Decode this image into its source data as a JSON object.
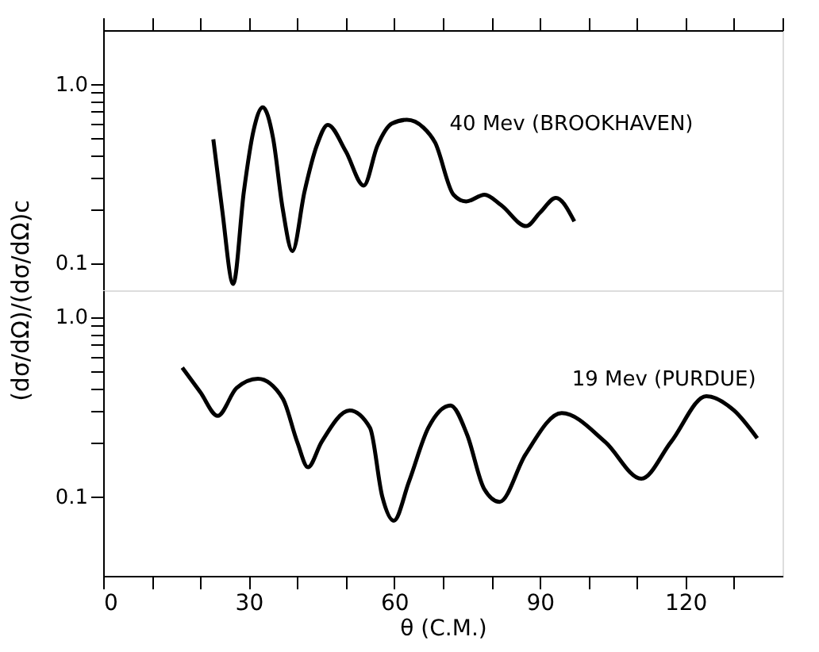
{
  "chart_data": [
    {
      "type": "line",
      "ylabel": "(dσ/dΩ)/(dσ/dΩ)c",
      "log": "y",
      "xlim": [
        0,
        140
      ],
      "ylim": [
        0.07,
        2.0
      ],
      "xticks": [
        {
          "value": 0,
          "label": null
        },
        {
          "value": 10,
          "label": null
        },
        {
          "value": 20,
          "label": null
        },
        {
          "value": 30,
          "label": null
        },
        {
          "value": 40,
          "label": null
        },
        {
          "value": 50,
          "label": null
        },
        {
          "value": 60,
          "label": null
        },
        {
          "value": 70,
          "label": null
        },
        {
          "value": 80,
          "label": null
        },
        {
          "value": 90,
          "label": null
        },
        {
          "value": 100,
          "label": null
        },
        {
          "value": 110,
          "label": null
        },
        {
          "value": 120,
          "label": null
        },
        {
          "value": 130,
          "label": null
        },
        {
          "value": 140,
          "label": null
        }
      ],
      "yticks": [
        {
          "value": 0.1,
          "label": "0.1"
        },
        {
          "value": 0.2,
          "label": null
        },
        {
          "value": 0.3,
          "label": null
        },
        {
          "value": 0.4,
          "label": null
        },
        {
          "value": 0.5,
          "label": null
        },
        {
          "value": 0.6,
          "label": null
        },
        {
          "value": 0.7,
          "label": null
        },
        {
          "value": 0.8,
          "label": null
        },
        {
          "value": 0.9,
          "label": null
        },
        {
          "value": 1.0,
          "label": "1.0"
        }
      ],
      "tick_labels": "y",
      "grid": false,
      "marker": "none",
      "line_style": "solid",
      "series": [
        {
          "color": "#000000",
          "x": [
            22.7,
            24.5,
            26.8,
            29,
            31,
            32.9,
            35,
            37,
            39.0,
            41.5,
            44,
            46.3,
            50,
            53.7,
            56.5,
            59.5,
            62.6,
            66,
            68.4,
            72.2,
            74.8,
            78.6,
            82,
            87.2,
            90,
            93.3,
            97.1
          ],
          "values": [
            0.49,
            0.2,
            0.076,
            0.25,
            0.55,
            0.74,
            0.5,
            0.2,
            0.116,
            0.25,
            0.45,
            0.59,
            0.42,
            0.27,
            0.45,
            0.6,
            0.63,
            0.57,
            0.47,
            0.24,
            0.22,
            0.24,
            0.21,
            0.16,
            0.19,
            0.23,
            0.17
          ]
        }
      ],
      "annotations": [
        "40 Mev  (BROOKHAVEN)"
      ]
    },
    {
      "type": "line",
      "xlabel": "θ (C.M.)",
      "log": "y",
      "xlim": [
        0,
        140
      ],
      "ylim": [
        0.036,
        1.4
      ],
      "xticks": [
        0,
        {
          "value": 10,
          "label": null
        },
        {
          "value": 20,
          "label": null
        },
        30,
        {
          "value": 40,
          "label": null
        },
        {
          "value": 50,
          "label": null
        },
        60,
        {
          "value": 70,
          "label": null
        },
        {
          "value": 80,
          "label": null
        },
        90,
        {
          "value": 100,
          "label": null
        },
        {
          "value": 110,
          "label": null
        },
        120,
        {
          "value": 130,
          "label": null
        }
      ],
      "yticks": [
        {
          "value": 0.1,
          "label": "0.1"
        },
        {
          "value": 0.2,
          "label": null
        },
        {
          "value": 0.3,
          "label": null
        },
        {
          "value": 0.4,
          "label": null
        },
        {
          "value": 0.5,
          "label": null
        },
        {
          "value": 0.6,
          "label": null
        },
        {
          "value": 0.7,
          "label": null
        },
        {
          "value": 0.8,
          "label": null
        },
        {
          "value": 0.9,
          "label": null
        },
        {
          "value": 1.0,
          "label": "1.0"
        }
      ],
      "grid": false,
      "marker": "none",
      "line_style": "solid",
      "series": [
        {
          "color": "#000000",
          "x": [
            16.3,
            20,
            23.6,
            27.5,
            31.9,
            37,
            40,
            42.2,
            45,
            50.8,
            55,
            57.5,
            59.9,
            63,
            67,
            71.6,
            75,
            78.5,
            81.7,
            87,
            94.5,
            103.5,
            110.9,
            117,
            124.3,
            130,
            134.8
          ],
          "values": [
            0.52,
            0.38,
            0.28,
            0.4,
            0.45,
            0.35,
            0.2,
            0.145,
            0.2,
            0.3,
            0.24,
            0.1,
            0.073,
            0.12,
            0.24,
            0.32,
            0.22,
            0.11,
            0.093,
            0.17,
            0.29,
            0.2,
            0.125,
            0.2,
            0.36,
            0.3,
            0.21
          ]
        }
      ],
      "annotations": [
        "19 Mev (PURDUE)"
      ]
    }
  ]
}
